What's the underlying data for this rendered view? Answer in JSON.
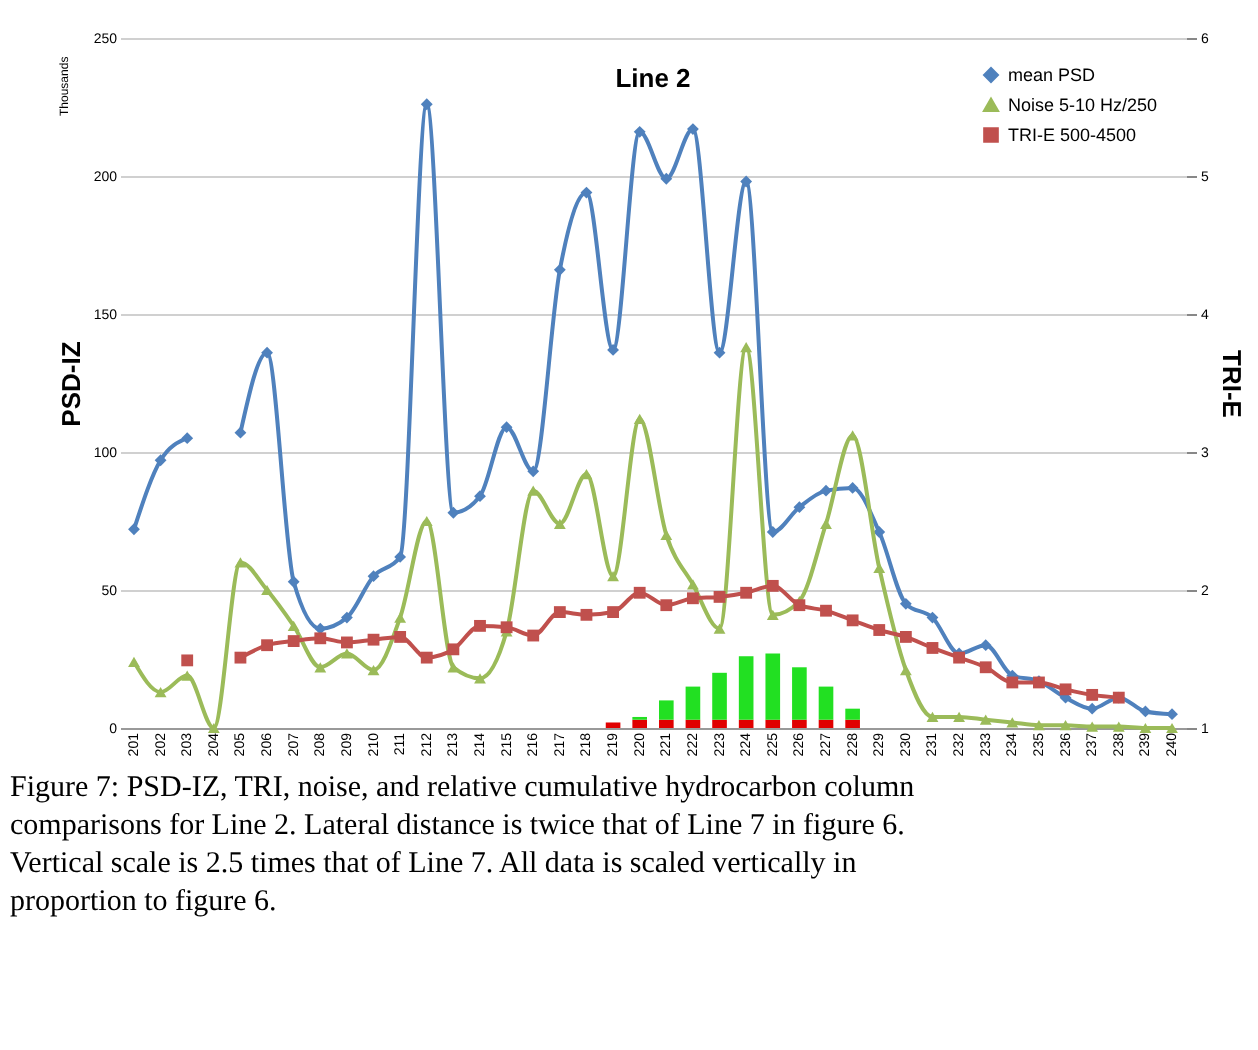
{
  "chart_data": {
    "type": "line",
    "title": "Line 2",
    "ylabel": "PSD-IZ",
    "y2label": "TRI-E",
    "annotations": [
      "Thousands",
      "Figure 7:  PSD-IZ, TRI, noise, and relative cumulative hydrocarbon column comparisons for Line 2. Lateral distance is twice that of Line 7 in figure 6. Vertical scale is 2.5 times that of Line 7. All data is scaled vertically in proportion to figure 6."
    ],
    "categories": [
      "201",
      "202",
      "203",
      "204",
      "205",
      "206",
      "207",
      "208",
      "209",
      "210",
      "211",
      "212",
      "213",
      "214",
      "215",
      "216",
      "217",
      "218",
      "219",
      "220",
      "221",
      "222",
      "223",
      "224",
      "225",
      "226",
      "227",
      "228",
      "229",
      "230",
      "231",
      "232",
      "233",
      "234",
      "235",
      "236",
      "237",
      "238",
      "239",
      "240"
    ],
    "ylim": [
      0,
      250
    ],
    "yticks": [
      0,
      50,
      100,
      150,
      200,
      250
    ],
    "y2lim": [
      1,
      6
    ],
    "y2ticks": [
      1,
      2,
      3,
      4,
      5,
      6
    ],
    "grid": "y",
    "legend": "top right",
    "stacked": true,
    "series": [
      {
        "name": "mean PSD",
        "color": "#4f81bd",
        "marker": "diamond",
        "values": [
          72,
          97,
          105,
          null,
          107,
          136,
          53,
          36,
          40,
          55,
          62,
          226,
          78,
          84,
          109,
          93,
          166,
          194,
          137,
          216,
          199,
          217,
          136,
          198,
          71,
          80,
          86,
          87,
          71,
          45,
          40,
          27,
          30,
          19,
          17,
          11,
          7,
          11,
          6,
          5
        ]
      },
      {
        "name": "Noise 5-10 Hz/250",
        "color": "#9bbb59",
        "marker": "triangle",
        "values": [
          24,
          13,
          19,
          0,
          60,
          50,
          37,
          22,
          27,
          21,
          40,
          75,
          22,
          18,
          35,
          86,
          74,
          92,
          55,
          112,
          70,
          52,
          36,
          138,
          41,
          46,
          74,
          106,
          58,
          21,
          4,
          4,
          3,
          2,
          1,
          1,
          0.5,
          0.5,
          0,
          0
        ]
      },
      {
        "name": "TRI-E 500-4500",
        "color": "#c0504d",
        "marker": "square",
        "axis": "y2",
        "values": [
          null,
          null,
          1.49,
          null,
          1.51,
          1.6,
          1.63,
          1.65,
          1.62,
          1.64,
          1.66,
          1.51,
          1.57,
          1.74,
          1.73,
          1.67,
          1.84,
          1.82,
          1.84,
          1.98,
          1.89,
          1.94,
          1.95,
          1.98,
          2.03,
          1.89,
          1.85,
          1.78,
          1.71,
          1.66,
          1.58,
          1.51,
          1.44,
          1.33,
          1.33,
          1.28,
          1.24,
          1.22,
          null,
          null
        ]
      },
      {
        "type": "bar",
        "color": "#e00000",
        "values": [
          null,
          null,
          null,
          null,
          null,
          null,
          null,
          null,
          null,
          null,
          null,
          null,
          null,
          null,
          null,
          null,
          null,
          null,
          2,
          3,
          3,
          3,
          3,
          3,
          3,
          3,
          3,
          3,
          null,
          null,
          null,
          null,
          null,
          null,
          null,
          null,
          null,
          null,
          null,
          null
        ]
      },
      {
        "type": "bar",
        "color": "#22e022",
        "values": [
          null,
          null,
          null,
          null,
          null,
          null,
          null,
          null,
          null,
          null,
          null,
          null,
          null,
          null,
          null,
          null,
          null,
          null,
          null,
          1,
          7,
          12,
          17,
          23,
          24,
          19,
          12,
          4,
          null,
          null,
          null,
          null,
          null,
          null,
          null,
          null,
          null,
          null,
          null,
          null
        ]
      }
    ]
  }
}
